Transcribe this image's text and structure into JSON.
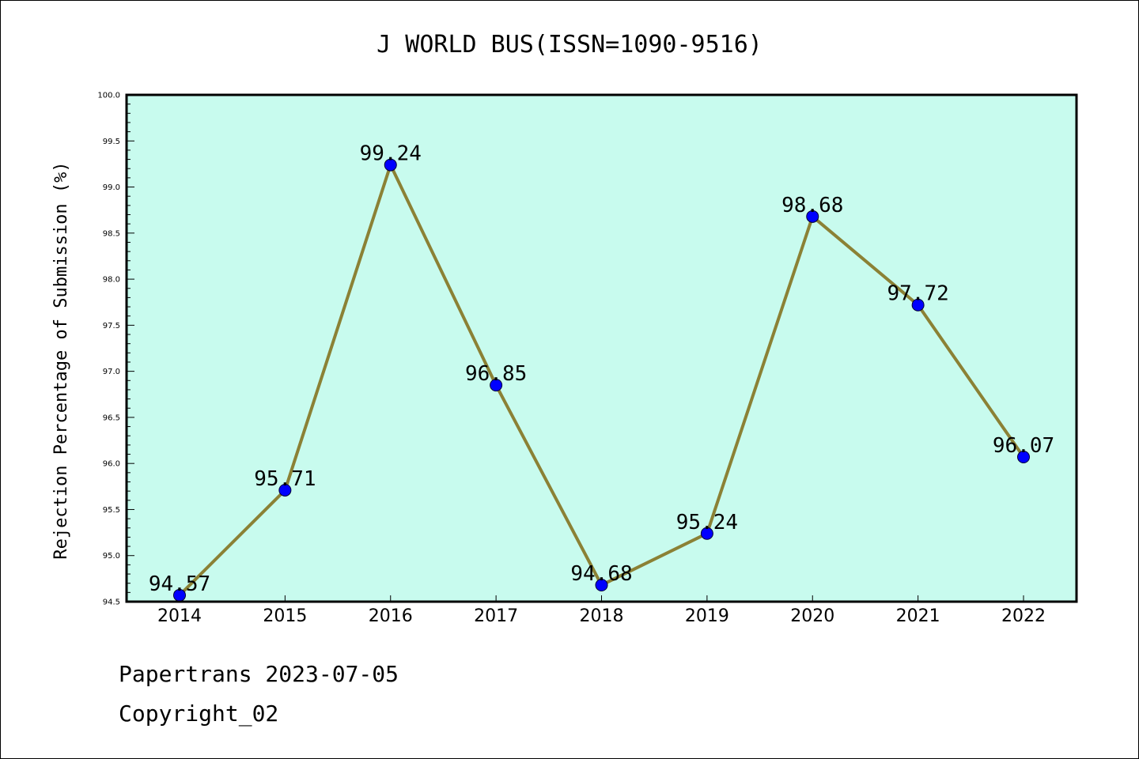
{
  "chart_data": {
    "type": "line",
    "title": "J WORLD BUS(ISSN=1090-9516)",
    "xlabel": "",
    "ylabel": "Rejection Percentage of Submission (%)",
    "categories": [
      "2014",
      "2015",
      "2016",
      "2017",
      "2018",
      "2019",
      "2020",
      "2021",
      "2022"
    ],
    "series": [
      {
        "values": [
          94.57,
          95.71,
          99.24,
          96.85,
          94.68,
          95.24,
          98.68,
          97.72,
          96.07
        ]
      }
    ],
    "data_labels": [
      "94.57",
      "95.71",
      "99.24",
      "96.85",
      "94.68",
      "95.24",
      "98.68",
      "97.72",
      "96.07"
    ],
    "ylim": [
      94.5,
      100.0
    ],
    "yticks": [
      "94.5",
      "95.0",
      "95.5",
      "96.0",
      "96.5",
      "97.0",
      "97.5",
      "98.0",
      "98.5",
      "99.0",
      "99.5",
      "100.0"
    ],
    "grid": false,
    "colors": {
      "plot_background": "#c8fbee",
      "line": "#8b8135",
      "marker": "#0000ff"
    }
  },
  "footer": {
    "line1": "Papertrans 2023-07-05",
    "line2": "Copyright_02"
  }
}
